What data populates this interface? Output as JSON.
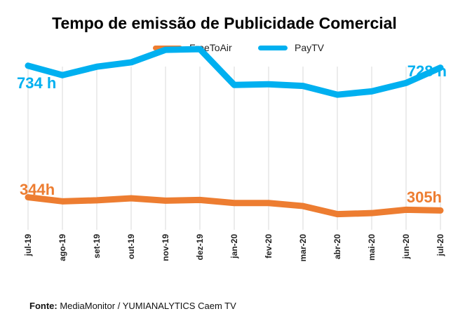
{
  "chart_data": {
    "type": "line",
    "title": "Tempo de emissão de Publicidade Comercial",
    "categories": [
      "jul-19",
      "ago-19",
      "set-19",
      "out-19",
      "nov-19",
      "dez-19",
      "jan-20",
      "fev-20",
      "mar-20",
      "abr-20",
      "mai-20",
      "jun-20",
      "jul-20"
    ],
    "series": [
      {
        "name": "FreeToAir",
        "color": "#ED7D31",
        "values": [
          344,
          332,
          335,
          341,
          334,
          336,
          327,
          327,
          318,
          294,
          297,
          307,
          305
        ]
      },
      {
        "name": "PayTV",
        "color": "#00B0F0",
        "values": [
          734,
          706,
          731,
          744,
          781,
          783,
          677,
          679,
          674,
          648,
          658,
          683,
          728
        ]
      }
    ],
    "annotations": {
      "paytv_start": "734 h",
      "paytv_end": "728 h",
      "freetoair_start": "344h",
      "freetoair_end": "305h"
    },
    "ylim": [
      260,
      800
    ],
    "grid": "vertical"
  },
  "source_label": "Fonte:",
  "source_text": "MediaMonitor / YUMIANALYTICS Caem TV"
}
